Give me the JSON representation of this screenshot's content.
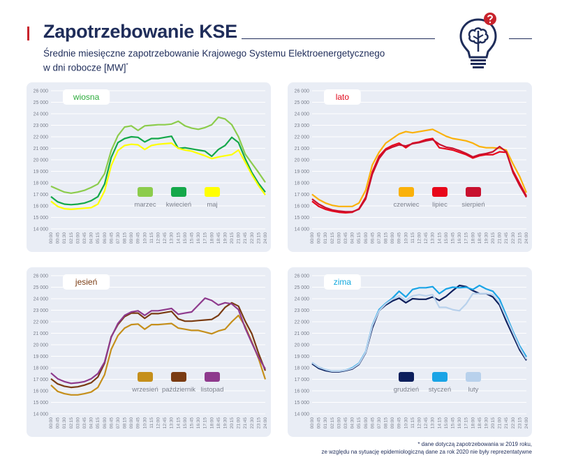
{
  "header": {
    "title": "Zapotrzebowanie KSE",
    "subtitle_line1": "Średnie miesięczne zapotrzebowanie Krajowego Systemu Elektroenergetycznego",
    "subtitle_line2": "w dni robocze [MW]",
    "subtitle_mark": "*"
  },
  "footnote": {
    "line1": "* dane dotyczą zapotrzebowania w 2019 roku,",
    "line2": "ze względu na sytuację epidemiologiczną dane za rok 2020 nie były reprezentatywne"
  },
  "colors": {
    "title": "#1f2d5a",
    "accent": "#c8232c",
    "panel_bg": "#e9edf5",
    "grid": "#ffffff"
  },
  "chart_data": [
    {
      "type": "line",
      "title": "wiosna",
      "title_color": "#2cac3c",
      "ylim": [
        14000,
        26000
      ],
      "yticks": [
        "14 000",
        "15 000",
        "16 000",
        "17 000",
        "18 000",
        "19 000",
        "20 000",
        "21 000",
        "22 000",
        "23 000",
        "24 000",
        "25 000",
        "26 000"
      ],
      "x": [
        "00:00",
        "00:45",
        "01:30",
        "02:15",
        "03:00",
        "03:45",
        "04:30",
        "05:15",
        "06:00",
        "06:45",
        "07:30",
        "08:15",
        "09:00",
        "09:45",
        "10:30",
        "11:15",
        "12:00",
        "12:45",
        "13:30",
        "14:15",
        "15:00",
        "15:45",
        "16:30",
        "17:15",
        "18:00",
        "18:45",
        "19:30",
        "20:15",
        "21:00",
        "21:45",
        "22:30",
        "23:15",
        "24:00"
      ],
      "legend_placement": "bottom-right",
      "series": [
        {
          "name": "marzec",
          "color": "#8ccc4c",
          "values": [
            17700,
            17450,
            17200,
            17100,
            17200,
            17350,
            17600,
            17900,
            18800,
            20800,
            22100,
            22850,
            22950,
            22550,
            22950,
            23000,
            23050,
            23050,
            23100,
            23350,
            22950,
            22750,
            22650,
            22800,
            23050,
            23700,
            23550,
            23050,
            22000,
            20500,
            19700,
            18900,
            18050
          ]
        },
        {
          "name": "kwiecień",
          "color": "#14a84a",
          "values": [
            16800,
            16350,
            16150,
            16100,
            16150,
            16250,
            16450,
            16800,
            17900,
            20200,
            21500,
            21850,
            22000,
            21950,
            21550,
            21850,
            21850,
            21950,
            22050,
            21000,
            21050,
            20950,
            20850,
            20750,
            20300,
            20900,
            21250,
            21950,
            21500,
            20100,
            18900,
            17950,
            17200
          ]
        },
        {
          "name": "maj",
          "color": "#ffff00",
          "values": [
            16400,
            15950,
            15750,
            15700,
            15750,
            15800,
            15850,
            16150,
            17300,
            19500,
            20800,
            21250,
            21350,
            21300,
            20900,
            21250,
            21350,
            21400,
            21450,
            21000,
            20850,
            20750,
            20550,
            20350,
            20100,
            20250,
            20350,
            20450,
            20850,
            19800,
            18700,
            17750,
            16950
          ]
        }
      ]
    },
    {
      "type": "line",
      "title": "lato",
      "title_color": "#e1081c",
      "ylim": [
        14000,
        26000
      ],
      "yticks": [
        "14 000",
        "15 000",
        "16 000",
        "17 000",
        "18 000",
        "19 000",
        "20 000",
        "21 000",
        "22 000",
        "23 000",
        "24 000",
        "25 000",
        "26 000"
      ],
      "x": [
        "00:00",
        "00:45",
        "01:30",
        "02:15",
        "03:00",
        "03:45",
        "04:30",
        "05:15",
        "06:00",
        "06:45",
        "07:30",
        "08:15",
        "09:00",
        "09:45",
        "10:30",
        "11:15",
        "12:00",
        "12:45",
        "13:30",
        "14:15",
        "15:00",
        "15:45",
        "16:30",
        "17:15",
        "18:00",
        "18:45",
        "19:30",
        "20:15",
        "21:00",
        "21:45",
        "22:30",
        "23:15",
        "24:00"
      ],
      "legend_placement": "bottom-right",
      "series": [
        {
          "name": "czerwiec",
          "color": "#fab10a",
          "values": [
            17000,
            16550,
            16250,
            16050,
            15950,
            15950,
            15950,
            16250,
            17350,
            19550,
            20650,
            21450,
            21850,
            22250,
            22450,
            22350,
            22450,
            22550,
            22650,
            22350,
            22050,
            21850,
            21750,
            21650,
            21450,
            21150,
            21050,
            21050,
            21000,
            20850,
            19650,
            18550,
            17150
          ]
        },
        {
          "name": "lipiec",
          "color": "#e8071a",
          "values": [
            16400,
            15950,
            15700,
            15550,
            15450,
            15400,
            15450,
            15750,
            16750,
            18950,
            20300,
            20950,
            21250,
            21450,
            21050,
            21450,
            21550,
            21750,
            21850,
            21050,
            20950,
            20850,
            20650,
            20450,
            20150,
            20350,
            20450,
            20450,
            20700,
            20650,
            19050,
            17950,
            16850
          ]
        },
        {
          "name": "sierpień",
          "color": "#c8102e",
          "values": [
            16600,
            16150,
            15850,
            15650,
            15550,
            15500,
            15500,
            15700,
            16600,
            18750,
            20100,
            20850,
            21100,
            21300,
            21200,
            21400,
            21500,
            21650,
            21750,
            21350,
            21100,
            21000,
            20800,
            20550,
            20250,
            20450,
            20550,
            20700,
            21150,
            20700,
            18900,
            17750,
            16750
          ]
        }
      ]
    },
    {
      "type": "line",
      "title": "jesień",
      "title_color": "#7a3b12",
      "ylim": [
        14000,
        26000
      ],
      "yticks": [
        "14 000",
        "15 000",
        "16 000",
        "17 000",
        "18 000",
        "19 000",
        "20 000",
        "21 000",
        "22 000",
        "23 000",
        "24 000",
        "25 000",
        "26 000"
      ],
      "x": [
        "00:00",
        "00:45",
        "01:30",
        "02:15",
        "03:00",
        "03:45",
        "04:30",
        "05:15",
        "06:00",
        "06:45",
        "07:30",
        "08:15",
        "09:00",
        "09:45",
        "10:30",
        "11:15",
        "12:00",
        "12:45",
        "13:30",
        "14:15",
        "15:00",
        "15:45",
        "16:30",
        "17:15",
        "18:00",
        "18:45",
        "19:30",
        "20:15",
        "21:00",
        "21:45",
        "22:30",
        "23:15",
        "24:00"
      ],
      "legend_placement": "bottom-right",
      "series": [
        {
          "name": "wrzesień",
          "color": "#c58f1b",
          "values": [
            16500,
            15950,
            15750,
            15650,
            15650,
            15750,
            15900,
            16300,
            17400,
            19600,
            20800,
            21450,
            21750,
            21800,
            21350,
            21750,
            21750,
            21800,
            21850,
            21450,
            21350,
            21250,
            21250,
            21100,
            20950,
            21200,
            21350,
            22000,
            22550,
            21600,
            20250,
            18800,
            17000
          ]
        },
        {
          "name": "październik",
          "color": "#7a3b12",
          "values": [
            17050,
            16600,
            16400,
            16300,
            16350,
            16500,
            16700,
            17200,
            18400,
            20700,
            21750,
            22450,
            22750,
            22750,
            22300,
            22700,
            22700,
            22800,
            22900,
            22250,
            22050,
            22050,
            22100,
            22150,
            22200,
            22550,
            23250,
            23650,
            23350,
            22050,
            20950,
            19250,
            17750
          ]
        },
        {
          "name": "listopad",
          "color": "#8e3a8d",
          "values": [
            17550,
            17050,
            16800,
            16650,
            16700,
            16800,
            17050,
            17500,
            18500,
            20650,
            21850,
            22550,
            22850,
            22950,
            22550,
            22950,
            22950,
            23050,
            23150,
            22650,
            22750,
            22850,
            23450,
            24050,
            23850,
            23450,
            23650,
            23550,
            23050,
            21450,
            20150,
            18900,
            17900
          ]
        }
      ]
    },
    {
      "type": "line",
      "title": "zima",
      "title_color": "#12a8de",
      "ylim": [
        14000,
        26000
      ],
      "yticks": [
        "14 000",
        "15 000",
        "16 000",
        "17 000",
        "18 000",
        "19 000",
        "20 000",
        "21 000",
        "22 000",
        "23 000",
        "24 000",
        "25 000",
        "26 000"
      ],
      "x": [
        "00:00",
        "00:45",
        "01:30",
        "02:15",
        "03:00",
        "03:45",
        "04:30",
        "05:15",
        "06:00",
        "06:45",
        "07:30",
        "08:15",
        "09:00",
        "09:45",
        "10:30",
        "11:15",
        "12:00",
        "12:45",
        "13:30",
        "14:15",
        "15:00",
        "15:45",
        "16:30",
        "17:15",
        "18:00",
        "18:45",
        "19:30",
        "20:15",
        "21:00",
        "21:45",
        "22:30",
        "23:15",
        "24:00"
      ],
      "legend_placement": "bottom-right",
      "series": [
        {
          "name": "grudzień",
          "color": "#0d1f5c",
          "values": [
            18350,
            17950,
            17750,
            17650,
            17650,
            17750,
            17900,
            18300,
            19300,
            21450,
            22950,
            23450,
            23800,
            24050,
            23650,
            24000,
            23950,
            23950,
            24150,
            23850,
            24200,
            24700,
            25150,
            25050,
            24700,
            24450,
            24450,
            24150,
            23450,
            22050,
            20800,
            19550,
            18650
          ]
        },
        {
          "name": "styczeń",
          "color": "#1aa4e6",
          "values": [
            18450,
            18050,
            17850,
            17700,
            17700,
            17800,
            18000,
            18400,
            19400,
            21700,
            23050,
            23600,
            24050,
            24650,
            24150,
            24800,
            24950,
            24950,
            25050,
            24450,
            24850,
            25000,
            24950,
            25000,
            24800,
            25150,
            24850,
            24650,
            23950,
            22550,
            21150,
            19900,
            18950
          ]
        },
        {
          "name": "luty",
          "color": "#b8d1ec",
          "values": [
            18450,
            18050,
            17850,
            17700,
            17700,
            17800,
            17950,
            18350,
            19350,
            21650,
            22950,
            23550,
            23950,
            24250,
            23850,
            24250,
            24350,
            24250,
            24350,
            23250,
            23250,
            23050,
            22950,
            23550,
            24450,
            24450,
            24450,
            24350,
            23650,
            22350,
            21050,
            19750,
            18750
          ]
        }
      ]
    }
  ]
}
